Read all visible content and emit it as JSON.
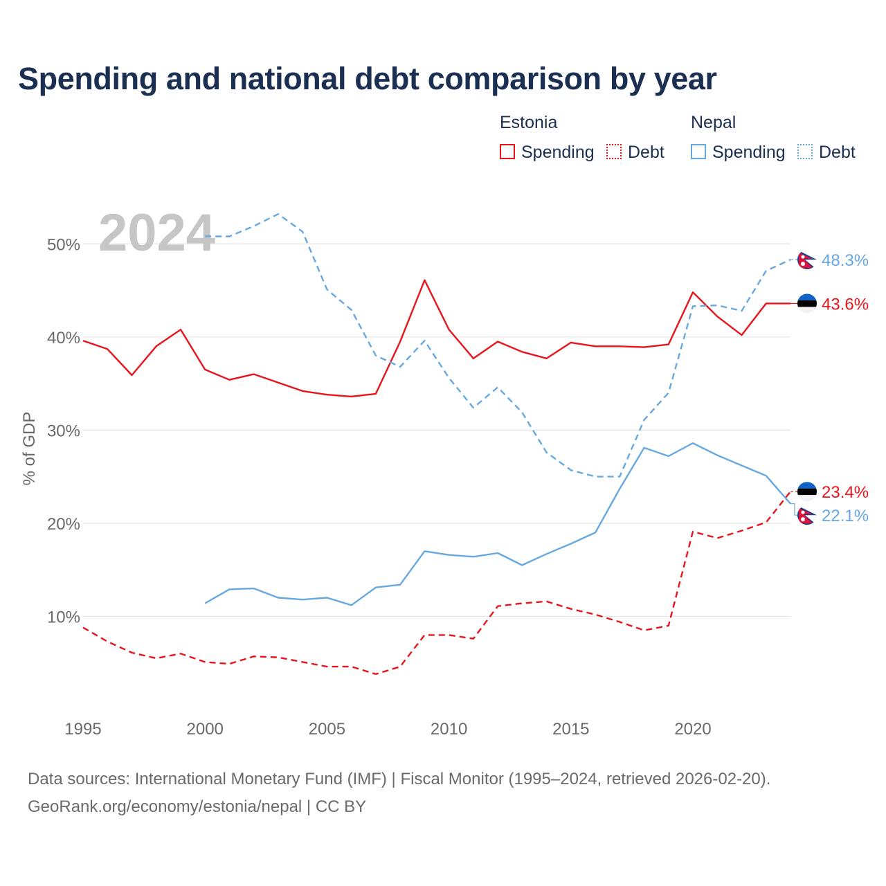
{
  "title": "Spending and national debt comparison by year",
  "legend": {
    "groups": [
      {
        "name": "Estonia",
        "color": "#e8141c",
        "items": [
          {
            "label": "Spending",
            "style": "solid"
          },
          {
            "label": "Debt",
            "style": "dotted"
          }
        ]
      },
      {
        "name": "Nepal",
        "color": "#67a8e0",
        "items": [
          {
            "label": "Spending",
            "style": "solid"
          },
          {
            "label": "Debt",
            "style": "dotted"
          }
        ]
      }
    ]
  },
  "year_watermark": "2024",
  "sources": {
    "line1": "Data sources: International Monetary Fund (IMF) | Fiscal Monitor (1995–2024, retrieved 2026-02-20).",
    "line2": "GeoRank.org/economy/estonia/nepal | CC BY"
  },
  "colors": {
    "estonia": "#e8141c",
    "nepal": "#67a8e0",
    "title": "#1b2f52",
    "axis_text": "#6a6a6a",
    "grid": "#e4e4e4",
    "watermark": "#c6c6c6"
  },
  "chart_data": {
    "type": "line",
    "title": "Spending and national debt comparison by year",
    "xlabel": "",
    "ylabel": "% of GDP",
    "xlim": [
      1995,
      2024
    ],
    "ylim": [
      0,
      55
    ],
    "grid": true,
    "x_ticks": [
      1995,
      2000,
      2005,
      2010,
      2015,
      2020
    ],
    "y_ticks": [
      10,
      20,
      30,
      40,
      50
    ],
    "y_tick_labels": [
      "10%",
      "20%",
      "30%",
      "40%",
      "50%"
    ],
    "series": [
      {
        "name": "Estonia Spending",
        "country": "Estonia",
        "kind": "Spending",
        "color": "#e8141c",
        "dash": "solid",
        "x": [
          1995,
          1996,
          1997,
          1998,
          1999,
          2000,
          2001,
          2002,
          2003,
          2004,
          2005,
          2006,
          2007,
          2008,
          2009,
          2010,
          2011,
          2012,
          2013,
          2014,
          2015,
          2016,
          2017,
          2018,
          2019,
          2020,
          2021,
          2022,
          2023,
          2024
        ],
        "y": [
          39.6,
          38.7,
          35.9,
          39.0,
          40.8,
          36.5,
          35.4,
          36.0,
          35.1,
          34.2,
          33.8,
          33.6,
          33.9,
          39.5,
          46.1,
          40.8,
          37.7,
          39.5,
          38.4,
          37.7,
          39.4,
          39.0,
          39.0,
          38.9,
          39.2,
          44.8,
          42.2,
          40.2,
          43.6,
          43.6
        ],
        "end_label": "43.6%"
      },
      {
        "name": "Estonia Debt",
        "country": "Estonia",
        "kind": "Debt",
        "color": "#e8141c",
        "dash": "dashed",
        "x": [
          1995,
          1996,
          1997,
          1998,
          1999,
          2000,
          2001,
          2002,
          2003,
          2004,
          2005,
          2006,
          2007,
          2008,
          2009,
          2010,
          2011,
          2012,
          2013,
          2014,
          2015,
          2016,
          2017,
          2018,
          2019,
          2020,
          2021,
          2022,
          2023,
          2024
        ],
        "y": [
          8.8,
          7.3,
          6.1,
          5.5,
          6.0,
          5.1,
          4.9,
          5.7,
          5.6,
          5.1,
          4.6,
          4.6,
          3.8,
          4.6,
          8.0,
          8.0,
          7.6,
          11.1,
          11.4,
          11.6,
          10.8,
          10.2,
          9.4,
          8.5,
          9.0,
          19.1,
          18.4,
          19.2,
          20.1,
          23.4
        ],
        "end_label": "23.4%"
      },
      {
        "name": "Nepal Spending",
        "country": "Nepal",
        "kind": "Spending",
        "color": "#67a8e0",
        "dash": "solid",
        "x": [
          2000,
          2001,
          2002,
          2003,
          2004,
          2005,
          2006,
          2007,
          2008,
          2009,
          2010,
          2011,
          2012,
          2013,
          2014,
          2015,
          2016,
          2017,
          2018,
          2019,
          2020,
          2021,
          2022,
          2023,
          2024
        ],
        "y": [
          11.4,
          12.9,
          13.0,
          12.0,
          11.8,
          12.0,
          11.2,
          13.1,
          13.4,
          17.0,
          16.6,
          16.4,
          16.8,
          15.5,
          16.7,
          17.8,
          19.0,
          23.7,
          28.1,
          27.2,
          28.6,
          27.3,
          26.2,
          25.1,
          22.1
        ],
        "end_label": "22.1%"
      },
      {
        "name": "Nepal Debt",
        "country": "Nepal",
        "kind": "Debt",
        "color": "#67a8e0",
        "dash": "dashed",
        "x": [
          2000,
          2001,
          2002,
          2003,
          2004,
          2005,
          2006,
          2007,
          2008,
          2009,
          2010,
          2011,
          2012,
          2013,
          2014,
          2015,
          2016,
          2017,
          2018,
          2019,
          2020,
          2021,
          2022,
          2023,
          2024
        ],
        "y": [
          50.8,
          50.8,
          51.9,
          53.2,
          51.3,
          45.1,
          42.9,
          38.0,
          36.8,
          39.6,
          35.6,
          32.4,
          34.6,
          31.9,
          27.6,
          25.7,
          25.0,
          25.0,
          31.1,
          34.0,
          43.3,
          43.4,
          42.8,
          47.1,
          48.3
        ],
        "end_label": "48.3%"
      }
    ]
  }
}
